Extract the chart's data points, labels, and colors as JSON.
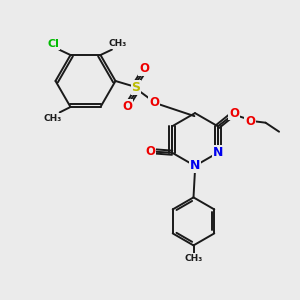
{
  "bg_color": "#ebebeb",
  "bond_color": "#1a1a1a",
  "lw": 1.4,
  "atom_colors": {
    "Cl": "#00bb00",
    "N": "#0000ee",
    "O": "#ee0000",
    "S": "#bbbb00",
    "C": "#1a1a1a"
  },
  "font_size": 7.5,
  "xlim": [
    0,
    10
  ],
  "ylim": [
    0,
    10
  ]
}
